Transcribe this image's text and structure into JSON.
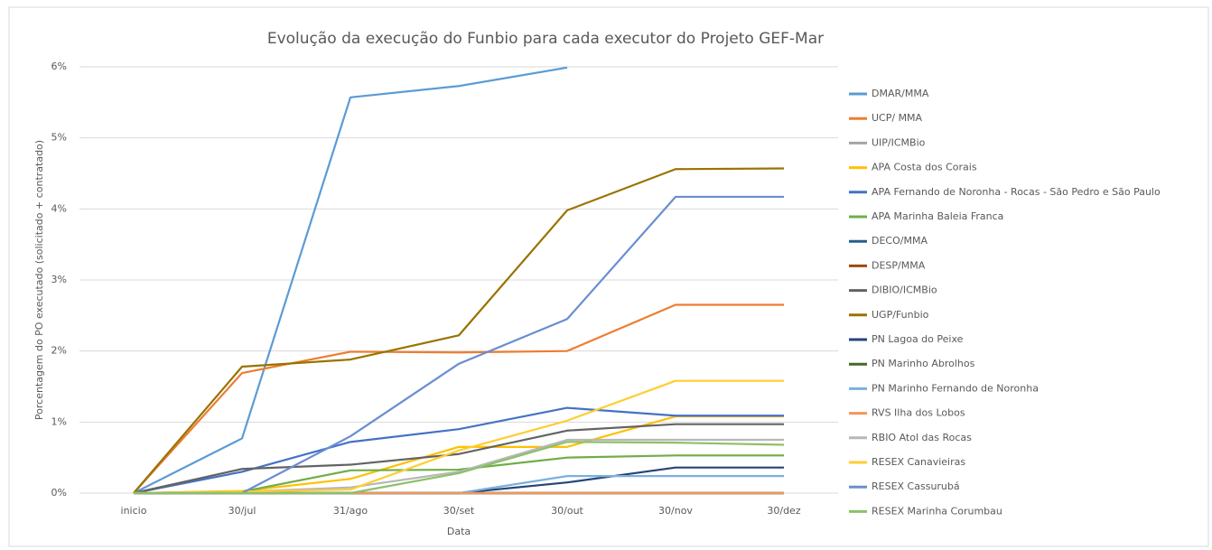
{
  "chart_data": {
    "type": "line",
    "title": "Evolução da execução do Funbio para cada executor do Projeto GEF-Mar",
    "x_label": "Data",
    "y_label": "Porcentagem do PO executado (solicitado + contratado)",
    "categories": [
      "inicio",
      "30/jul",
      "31/ago",
      "30/set",
      "30/out",
      "30/nov",
      "30/dez"
    ],
    "ylim": [
      0,
      6
    ],
    "yticks": [
      {
        "value": 0,
        "label": "0%"
      },
      {
        "value": 1,
        "label": "1%"
      },
      {
        "value": 2,
        "label": "2%"
      },
      {
        "value": 3,
        "label": "3%"
      },
      {
        "value": 4,
        "label": "4%"
      },
      {
        "value": 5,
        "label": "5%"
      },
      {
        "value": 6,
        "label": "6%"
      }
    ],
    "grid": true,
    "legend": "right",
    "series": [
      {
        "name": "DMAR/MMA",
        "color": "#5b9bd5",
        "values": [
          0,
          0.77,
          5.57,
          5.73,
          5.99,
          null,
          null
        ]
      },
      {
        "name": "UCP/ MMA",
        "color": "#ed7d31",
        "values": [
          0,
          1.69,
          1.99,
          1.98,
          2.0,
          2.65,
          2.65
        ]
      },
      {
        "name": "UIP/ICMBio",
        "color": "#a5a5a5",
        "values": [
          0,
          0,
          0,
          0,
          0,
          0,
          0
        ]
      },
      {
        "name": "APA Costa dos Corais",
        "color": "#ffc000",
        "values": [
          0,
          0.03,
          0.2,
          0.65,
          0.65,
          1.08,
          1.08
        ]
      },
      {
        "name": "APA Fernando de Noronha - Rocas - São Pedro e São Paulo",
        "color": "#4472c4",
        "values": [
          0,
          0.3,
          0.72,
          0.9,
          1.2,
          1.09,
          1.09
        ]
      },
      {
        "name": "APA Marinha Baleia Franca",
        "color": "#70ad47",
        "values": [
          0,
          0.02,
          0.32,
          0.33,
          0.5,
          0.53,
          0.53
        ]
      },
      {
        "name": "DECO/MMA",
        "color": "#255e91",
        "values": [
          0,
          0,
          0,
          0,
          0,
          0,
          0
        ]
      },
      {
        "name": "DESP/MMA",
        "color": "#9e480e",
        "values": [
          0,
          0,
          0,
          0,
          0,
          0,
          0
        ]
      },
      {
        "name": "DIBIO/ICMBio",
        "color": "#636363",
        "values": [
          0,
          0.34,
          0.4,
          0.55,
          0.88,
          0.97,
          0.97
        ]
      },
      {
        "name": "UGP/Funbio",
        "color": "#997300",
        "values": [
          0,
          1.78,
          1.88,
          2.22,
          3.98,
          4.56,
          4.57
        ]
      },
      {
        "name": "PN Lagoa do Peixe",
        "color": "#264478",
        "values": [
          0,
          0,
          0,
          0,
          0.15,
          0.36,
          0.36
        ]
      },
      {
        "name": "PN Marinho Abrolhos",
        "color": "#43682b",
        "values": [
          0,
          0,
          0,
          0,
          0,
          0,
          0
        ]
      },
      {
        "name": "PN Marinho Fernando de Noronha",
        "color": "#7cafdd",
        "values": [
          0,
          0,
          0,
          0,
          0.24,
          0.24,
          0.24
        ]
      },
      {
        "name": "RVS Ilha dos Lobos",
        "color": "#f1975a",
        "values": [
          0,
          0,
          0,
          0,
          0,
          0,
          0
        ]
      },
      {
        "name": "RBIO Atol das Rocas",
        "color": "#b7b7b7",
        "values": [
          0,
          0.02,
          0.08,
          0.3,
          0.75,
          0.75,
          0.75
        ]
      },
      {
        "name": "RESEX Canavieiras",
        "color": "#ffcd33",
        "values": [
          0,
          0.02,
          0.05,
          0.6,
          1.02,
          1.58,
          1.58
        ]
      },
      {
        "name": "RESEX Cassurubá",
        "color": "#698ed0",
        "values": [
          0,
          0,
          0.8,
          1.82,
          2.45,
          4.17,
          4.17
        ]
      },
      {
        "name": "RESEX Marinha Corumbau",
        "color": "#8cc168",
        "values": [
          0,
          0,
          0,
          0.28,
          0.72,
          0.71,
          0.68
        ]
      }
    ]
  }
}
